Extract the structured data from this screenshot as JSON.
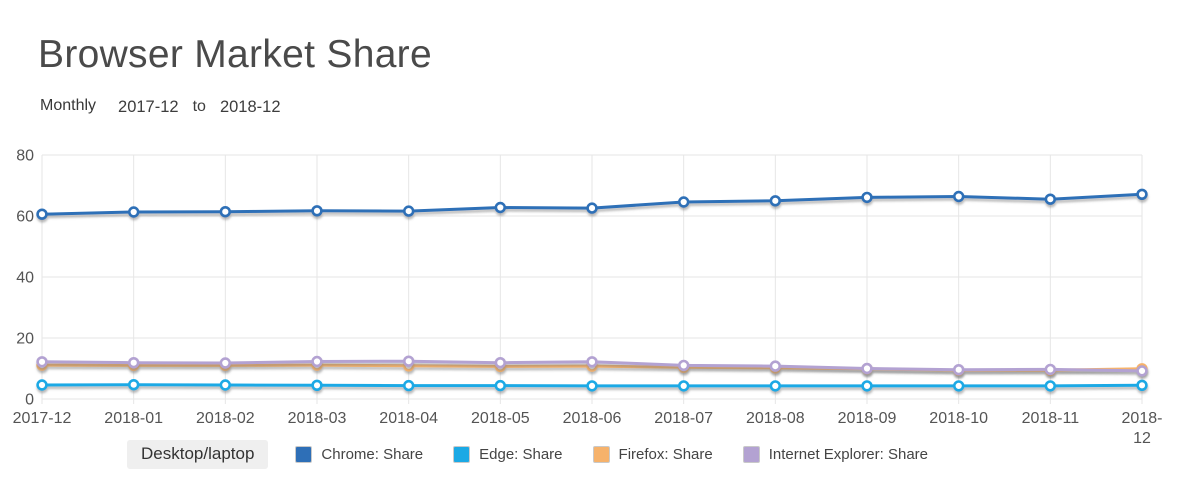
{
  "header": {
    "title": "Browser Market Share",
    "granularity": "Monthly",
    "date_from": "2017-12",
    "date_to": "2018-12",
    "connector": "to"
  },
  "device_tab": {
    "label": "Desktop/laptop"
  },
  "colors": {
    "chrome": "#2e6fb7",
    "edge": "#1ba9e5",
    "firefox": "#f6b26b",
    "internet_explorer": "#b3a2d2",
    "grid": "#e6e6e6",
    "axis_text": "#545454",
    "title_text": "#4a4a4a"
  },
  "chart_data": {
    "type": "line",
    "title": "Browser Market Share",
    "xlabel": "",
    "ylabel": "",
    "ylim": [
      0,
      80
    ],
    "yticks": [
      0,
      20,
      40,
      60,
      80
    ],
    "grid": true,
    "legend_position": "bottom",
    "marker": "open-circle",
    "x": [
      "2017-12",
      "2018-01",
      "2018-02",
      "2018-03",
      "2018-04",
      "2018-05",
      "2018-06",
      "2018-07",
      "2018-08",
      "2018-09",
      "2018-10",
      "2018-11",
      "2018-12"
    ],
    "series": [
      {
        "name": "Chrome: Share",
        "key": "chrome",
        "color": "#2e6fb7",
        "values": [
          60.6,
          61.3,
          61.4,
          61.7,
          61.6,
          62.8,
          62.6,
          64.6,
          65.0,
          66.1,
          66.4,
          65.5,
          67.1
        ]
      },
      {
        "name": "Edge: Share",
        "key": "edge",
        "color": "#1ba9e5",
        "values": [
          4.6,
          4.7,
          4.6,
          4.5,
          4.4,
          4.4,
          4.3,
          4.3,
          4.3,
          4.3,
          4.3,
          4.3,
          4.5
        ]
      },
      {
        "name": "Firefox: Share",
        "key": "firefox",
        "color": "#f6b26b",
        "values": [
          11.1,
          11.0,
          11.0,
          11.1,
          10.9,
          10.7,
          10.8,
          10.4,
          10.2,
          9.9,
          9.4,
          9.4,
          9.9
        ]
      },
      {
        "name": "Internet Explorer: Share",
        "key": "internet-explorer",
        "color": "#b3a2d2",
        "values": [
          12.2,
          11.9,
          11.8,
          12.3,
          12.4,
          11.9,
          12.2,
          11.0,
          10.8,
          10.0,
          9.6,
          9.7,
          9.2
        ]
      }
    ]
  }
}
